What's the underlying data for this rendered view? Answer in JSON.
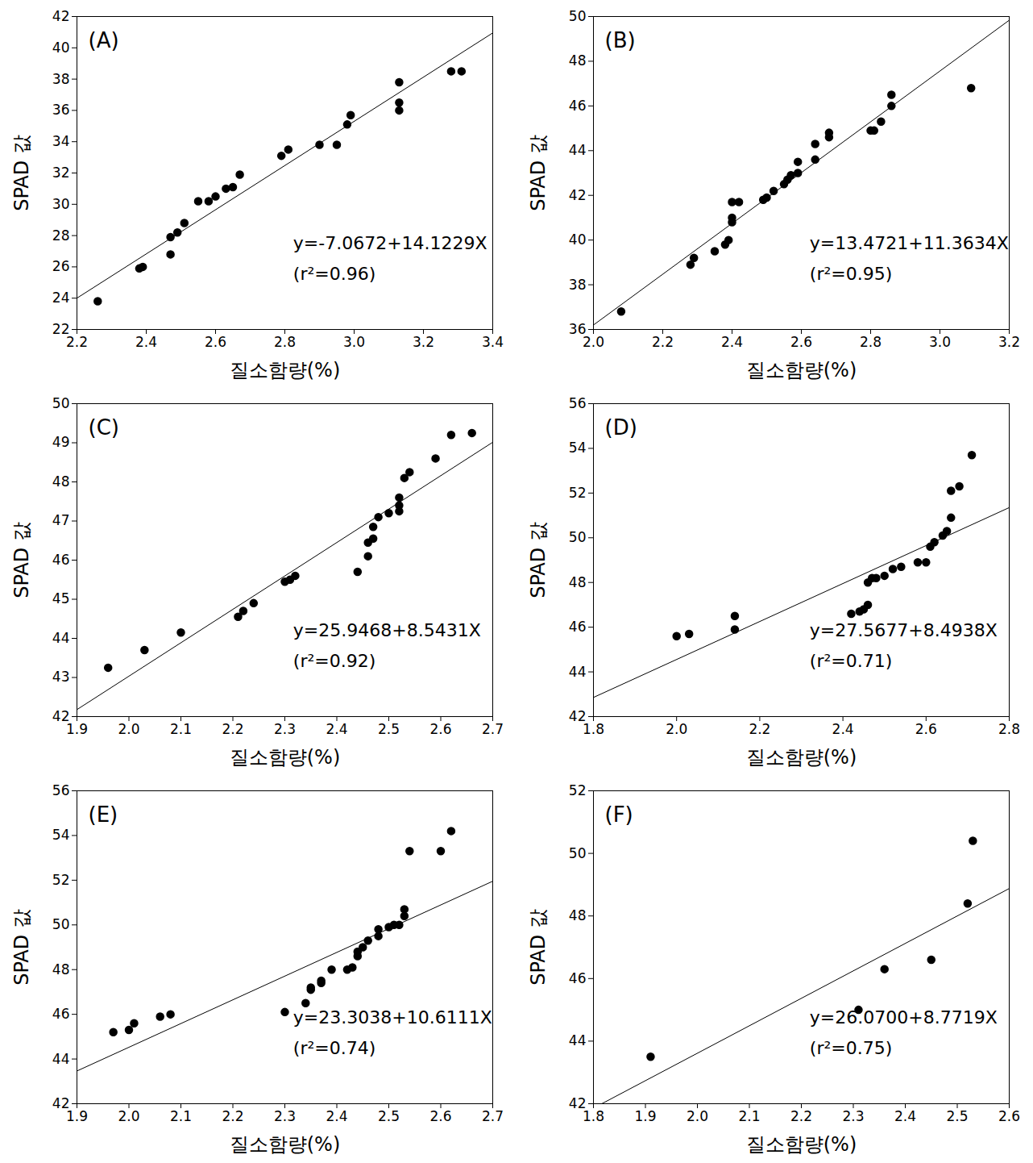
{
  "chart_data": [
    {
      "type": "scatter",
      "title": "(A)",
      "x_label": "질소함량(%)",
      "y_label": "SPAD 값",
      "color": "#000000",
      "marker": "circle",
      "x": [
        2.26,
        2.38,
        2.39,
        2.47,
        2.47,
        2.49,
        2.51,
        2.55,
        2.58,
        2.6,
        2.63,
        2.65,
        2.67,
        2.79,
        2.81,
        2.9,
        2.95,
        2.98,
        2.99,
        3.13,
        3.13,
        3.13,
        3.28,
        3.31
      ],
      "y": [
        23.8,
        25.9,
        26.0,
        26.8,
        27.9,
        28.2,
        28.8,
        30.2,
        30.2,
        30.5,
        31.0,
        31.1,
        31.9,
        33.1,
        33.5,
        33.8,
        33.8,
        35.1,
        35.7,
        36.5,
        36.0,
        37.8,
        38.5,
        38.5
      ],
      "fit": {
        "intercept": -7.0672,
        "slope": 14.1229
      },
      "annotations": [
        "y=-7.0672+14.1229X",
        "(r²=0.96)"
      ],
      "xlim": [
        2.2,
        3.4
      ],
      "xticks": [
        2.2,
        2.4,
        2.6,
        2.8,
        {
          "value": 3,
          "label": "3.0"
        },
        3.2,
        3.4
      ],
      "ylim": [
        22,
        42
      ],
      "yticks": [
        22,
        24,
        26,
        28,
        30,
        32,
        34,
        36,
        38,
        40,
        42
      ]
    },
    {
      "type": "scatter",
      "title": "(B)",
      "x_label": "질소함량(%)",
      "y_label": "SPAD 값",
      "color": "#000000",
      "marker": "circle",
      "x": [
        2.08,
        2.28,
        2.29,
        2.35,
        2.38,
        2.39,
        2.4,
        2.4,
        2.4,
        2.42,
        2.49,
        2.5,
        2.52,
        2.55,
        2.56,
        2.57,
        2.59,
        2.59,
        2.64,
        2.64,
        2.68,
        2.68,
        2.8,
        2.81,
        2.83,
        2.86,
        2.86,
        3.09
      ],
      "y": [
        36.8,
        38.9,
        39.2,
        39.5,
        39.8,
        40.0,
        40.8,
        41.0,
        41.7,
        41.7,
        41.8,
        41.9,
        42.2,
        42.5,
        42.7,
        42.9,
        43.0,
        43.5,
        43.6,
        44.3,
        44.6,
        44.8,
        44.9,
        44.9,
        45.3,
        46.0,
        46.5,
        46.8
      ],
      "fit": {
        "intercept": 13.4721,
        "slope": 11.3634
      },
      "annotations": [
        "y=13.4721+11.3634X",
        "(r²=0.95)"
      ],
      "xlim": [
        2,
        3.2
      ],
      "xticks": [
        {
          "value": 2,
          "label": "2.0"
        },
        2.2,
        2.4,
        2.6,
        2.8,
        {
          "value": 3,
          "label": "3.0"
        },
        3.2
      ],
      "ylim": [
        36,
        50
      ],
      "yticks": [
        36,
        38,
        40,
        42,
        44,
        46,
        48,
        50
      ]
    },
    {
      "type": "scatter",
      "title": "(C)",
      "x_label": "질소함량(%)",
      "y_label": "SPAD 값",
      "color": "#000000",
      "marker": "circle",
      "x": [
        1.96,
        2.03,
        2.1,
        2.21,
        2.22,
        2.24,
        2.3,
        2.31,
        2.32,
        2.44,
        2.46,
        2.46,
        2.47,
        2.47,
        2.48,
        2.5,
        2.52,
        2.52,
        2.52,
        2.53,
        2.54,
        2.59,
        2.62,
        2.66
      ],
      "y": [
        43.25,
        43.7,
        44.15,
        44.55,
        44.7,
        44.9,
        45.45,
        45.5,
        45.6,
        45.7,
        46.1,
        46.45,
        46.55,
        46.85,
        47.1,
        47.2,
        47.25,
        47.4,
        47.6,
        48.1,
        48.25,
        48.6,
        49.2,
        49.25
      ],
      "fit": {
        "intercept": 25.9468,
        "slope": 8.5431
      },
      "annotations": [
        "y=25.9468+8.5431X",
        "(r²=0.92)"
      ],
      "xlim": [
        1.9,
        2.7
      ],
      "xticks": [
        1.9,
        {
          "value": 2,
          "label": "2.0"
        },
        2.1,
        2.2,
        2.3,
        2.4,
        2.5,
        2.6,
        2.7
      ],
      "ylim": [
        42,
        50
      ],
      "yticks": [
        42,
        43,
        44,
        45,
        46,
        47,
        48,
        49,
        50
      ]
    },
    {
      "type": "scatter",
      "title": "(D)",
      "x_label": "질소함량(%)",
      "y_label": "SPAD 값",
      "color": "#000000",
      "marker": "circle",
      "x": [
        2.0,
        2.03,
        2.14,
        2.14,
        2.42,
        2.44,
        2.45,
        2.46,
        2.46,
        2.47,
        2.48,
        2.5,
        2.52,
        2.54,
        2.58,
        2.6,
        2.61,
        2.62,
        2.64,
        2.65,
        2.66,
        2.66,
        2.68,
        2.71
      ],
      "y": [
        45.6,
        45.7,
        45.9,
        46.5,
        46.6,
        46.7,
        46.8,
        47.0,
        48.0,
        48.2,
        48.2,
        48.3,
        48.6,
        48.7,
        48.9,
        48.9,
        49.6,
        49.8,
        50.1,
        50.3,
        50.9,
        52.1,
        52.3,
        53.7
      ],
      "fit": {
        "intercept": 27.5677,
        "slope": 8.4938
      },
      "annotations": [
        "y=27.5677+8.4938X",
        "(r²=0.71)"
      ],
      "xlim": [
        1.8,
        2.8
      ],
      "xticks": [
        1.8,
        {
          "value": 2,
          "label": "2.0"
        },
        2.2,
        2.4,
        2.6,
        2.8
      ],
      "ylim": [
        42,
        56
      ],
      "yticks": [
        42,
        44,
        46,
        48,
        50,
        52,
        54,
        56
      ]
    },
    {
      "type": "scatter",
      "title": "(E)",
      "x_label": "질소함량(%)",
      "y_label": "SPAD 값",
      "color": "#000000",
      "marker": "circle",
      "x": [
        1.97,
        2.0,
        2.01,
        2.06,
        2.08,
        2.3,
        2.34,
        2.35,
        2.35,
        2.37,
        2.37,
        2.39,
        2.42,
        2.43,
        2.44,
        2.44,
        2.45,
        2.46,
        2.48,
        2.48,
        2.5,
        2.51,
        2.52,
        2.53,
        2.53,
        2.54,
        2.6,
        2.62
      ],
      "y": [
        45.2,
        45.3,
        45.6,
        45.9,
        46.0,
        46.1,
        46.5,
        47.1,
        47.2,
        47.4,
        47.5,
        48.0,
        48.0,
        48.1,
        48.6,
        48.8,
        49.0,
        49.3,
        49.5,
        49.8,
        49.9,
        50.0,
        50.0,
        50.4,
        50.7,
        53.3,
        53.3,
        54.2
      ],
      "fit": {
        "intercept": 23.3038,
        "slope": 10.6111
      },
      "annotations": [
        "y=23.3038+10.6111X",
        "(r²=0.74)"
      ],
      "xlim": [
        1.9,
        2.7
      ],
      "xticks": [
        1.9,
        {
          "value": 2,
          "label": "2.0"
        },
        2.1,
        2.2,
        2.3,
        2.4,
        2.5,
        2.6,
        2.7
      ],
      "ylim": [
        42,
        56
      ],
      "yticks": [
        42,
        44,
        46,
        48,
        50,
        52,
        54,
        56
      ]
    },
    {
      "type": "scatter",
      "title": "(F)",
      "x_label": "질소함량(%)",
      "y_label": "SPAD 값",
      "color": "#000000",
      "marker": "circle",
      "x": [
        1.91,
        2.31,
        2.36,
        2.45,
        2.52,
        2.53
      ],
      "y": [
        43.5,
        45.0,
        46.3,
        46.6,
        48.4,
        50.4
      ],
      "fit": {
        "intercept": 26.07,
        "slope": 8.7719
      },
      "annotations": [
        "y=26.0700+8.7719X",
        "(r²=0.75)"
      ],
      "xlim": [
        1.8,
        2.6
      ],
      "xticks": [
        1.8,
        1.9,
        {
          "value": 2,
          "label": "2.0"
        },
        2.1,
        2.2,
        2.3,
        2.4,
        2.5,
        2.6
      ],
      "ylim": [
        42,
        52
      ],
      "yticks": [
        42,
        44,
        46,
        48,
        50,
        52
      ]
    }
  ]
}
